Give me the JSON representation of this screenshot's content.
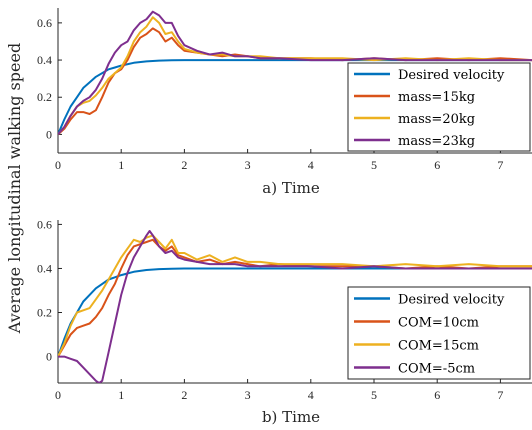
{
  "ylabel": "Average longitudinal walking speed",
  "colors": {
    "blue": "#0072BD",
    "orange": "#D95319",
    "yellow": "#EDB120",
    "purple": "#7E2F8E"
  },
  "chart_data": [
    {
      "type": "line",
      "xlabel": "a) Time",
      "xlim": [
        0,
        7.5
      ],
      "ylim": [
        -0.1,
        0.68
      ],
      "xticks": [
        0,
        1,
        2,
        3,
        4,
        5,
        6,
        7
      ],
      "yticks": [
        0,
        0.2,
        0.4,
        0.6
      ],
      "legend_position": "lower-right",
      "series": [
        {
          "name": "Desired velocity",
          "color": "#0072BD",
          "x": [
            0,
            0.1,
            0.2,
            0.3,
            0.4,
            0.5,
            0.6,
            0.7,
            0.8,
            0.9,
            1.0,
            1.2,
            1.4,
            1.6,
            1.8,
            2.0,
            2.5,
            3.0,
            4.0,
            5.0,
            6.0,
            7.0,
            7.5
          ],
          "y": [
            0,
            0.08,
            0.15,
            0.2,
            0.25,
            0.28,
            0.31,
            0.33,
            0.35,
            0.36,
            0.37,
            0.385,
            0.393,
            0.397,
            0.399,
            0.4,
            0.4,
            0.4,
            0.4,
            0.4,
            0.4,
            0.4,
            0.4
          ]
        },
        {
          "name": "mass=15kg",
          "color": "#D95319",
          "x": [
            0,
            0.1,
            0.2,
            0.3,
            0.4,
            0.5,
            0.6,
            0.7,
            0.8,
            0.9,
            1.0,
            1.1,
            1.2,
            1.3,
            1.4,
            1.5,
            1.6,
            1.7,
            1.8,
            1.9,
            2.0,
            2.2,
            2.4,
            2.6,
            2.8,
            3.0,
            3.2,
            3.5,
            4.0,
            4.5,
            5.0,
            5.5,
            6.0,
            6.5,
            7.0,
            7.5
          ],
          "y": [
            0,
            0.03,
            0.08,
            0.12,
            0.12,
            0.11,
            0.13,
            0.2,
            0.28,
            0.33,
            0.35,
            0.4,
            0.47,
            0.52,
            0.54,
            0.57,
            0.55,
            0.5,
            0.52,
            0.48,
            0.45,
            0.44,
            0.43,
            0.42,
            0.43,
            0.42,
            0.41,
            0.41,
            0.41,
            0.4,
            0.41,
            0.4,
            0.41,
            0.4,
            0.41,
            0.4
          ]
        },
        {
          "name": "mass=20kg",
          "color": "#EDB120",
          "x": [
            0,
            0.1,
            0.2,
            0.3,
            0.4,
            0.5,
            0.6,
            0.7,
            0.8,
            0.9,
            1.0,
            1.1,
            1.2,
            1.3,
            1.4,
            1.5,
            1.6,
            1.7,
            1.8,
            1.9,
            2.0,
            2.2,
            2.4,
            2.6,
            2.8,
            3.0,
            3.2,
            3.5,
            4.0,
            4.5,
            5.0,
            5.5,
            6.0,
            6.5,
            7.0,
            7.5
          ],
          "y": [
            0,
            0.04,
            0.1,
            0.15,
            0.17,
            0.18,
            0.21,
            0.25,
            0.3,
            0.33,
            0.36,
            0.42,
            0.5,
            0.55,
            0.58,
            0.63,
            0.6,
            0.54,
            0.55,
            0.5,
            0.46,
            0.44,
            0.43,
            0.43,
            0.42,
            0.42,
            0.42,
            0.41,
            0.41,
            0.41,
            0.4,
            0.41,
            0.4,
            0.41,
            0.4,
            0.4
          ]
        },
        {
          "name": "mass=23kg",
          "color": "#7E2F8E",
          "x": [
            0,
            0.1,
            0.2,
            0.3,
            0.4,
            0.5,
            0.6,
            0.7,
            0.8,
            0.9,
            1.0,
            1.1,
            1.2,
            1.3,
            1.4,
            1.5,
            1.6,
            1.7,
            1.8,
            1.9,
            2.0,
            2.2,
            2.4,
            2.6,
            2.8,
            3.0,
            3.2,
            3.5,
            4.0,
            4.5,
            5.0,
            5.5,
            6.0,
            6.5,
            7.0,
            7.5
          ],
          "y": [
            0,
            0.04,
            0.1,
            0.15,
            0.18,
            0.2,
            0.24,
            0.3,
            0.38,
            0.44,
            0.48,
            0.5,
            0.56,
            0.6,
            0.62,
            0.66,
            0.64,
            0.6,
            0.6,
            0.53,
            0.48,
            0.45,
            0.43,
            0.44,
            0.42,
            0.42,
            0.41,
            0.41,
            0.4,
            0.4,
            0.41,
            0.4,
            0.4,
            0.4,
            0.4,
            0.4
          ]
        }
      ]
    },
    {
      "type": "line",
      "xlabel": "b) Time",
      "xlim": [
        0,
        7.5
      ],
      "ylim": [
        -0.12,
        0.62
      ],
      "xticks": [
        0,
        1,
        2,
        3,
        4,
        5,
        6,
        7
      ],
      "yticks": [
        0,
        0.2,
        0.4,
        0.6
      ],
      "legend_position": "lower-right",
      "series": [
        {
          "name": "Desired velocity",
          "color": "#0072BD",
          "x": [
            0,
            0.1,
            0.2,
            0.3,
            0.4,
            0.5,
            0.6,
            0.7,
            0.8,
            0.9,
            1.0,
            1.2,
            1.4,
            1.6,
            1.8,
            2.0,
            2.5,
            3.0,
            4.0,
            5.0,
            6.0,
            7.0,
            7.5
          ],
          "y": [
            0,
            0.08,
            0.15,
            0.2,
            0.25,
            0.28,
            0.31,
            0.33,
            0.35,
            0.36,
            0.37,
            0.385,
            0.393,
            0.397,
            0.399,
            0.4,
            0.4,
            0.4,
            0.4,
            0.4,
            0.4,
            0.4,
            0.4
          ]
        },
        {
          "name": "COM=10cm",
          "color": "#D95319",
          "x": [
            0,
            0.1,
            0.2,
            0.3,
            0.4,
            0.5,
            0.6,
            0.7,
            0.8,
            0.9,
            1.0,
            1.1,
            1.2,
            1.3,
            1.4,
            1.5,
            1.6,
            1.7,
            1.8,
            1.9,
            2.0,
            2.2,
            2.4,
            2.6,
            2.8,
            3.0,
            3.2,
            3.5,
            4.0,
            4.5,
            5.0,
            5.5,
            6.0,
            6.5,
            7.0,
            7.5
          ],
          "y": [
            0,
            0.05,
            0.1,
            0.13,
            0.14,
            0.15,
            0.18,
            0.22,
            0.28,
            0.33,
            0.4,
            0.46,
            0.5,
            0.51,
            0.52,
            0.53,
            0.5,
            0.48,
            0.5,
            0.46,
            0.45,
            0.43,
            0.44,
            0.42,
            0.43,
            0.42,
            0.41,
            0.42,
            0.41,
            0.41,
            0.41,
            0.4,
            0.41,
            0.4,
            0.41,
            0.41
          ]
        },
        {
          "name": "COM=15cm",
          "color": "#EDB120",
          "x": [
            0,
            0.1,
            0.2,
            0.3,
            0.4,
            0.5,
            0.6,
            0.7,
            0.8,
            0.9,
            1.0,
            1.1,
            1.2,
            1.3,
            1.4,
            1.5,
            1.6,
            1.7,
            1.8,
            1.9,
            2.0,
            2.2,
            2.4,
            2.6,
            2.8,
            3.0,
            3.2,
            3.5,
            4.0,
            4.5,
            5.0,
            5.5,
            6.0,
            6.5,
            7.0,
            7.5
          ],
          "y": [
            0,
            0.06,
            0.14,
            0.2,
            0.21,
            0.22,
            0.26,
            0.3,
            0.35,
            0.4,
            0.45,
            0.49,
            0.53,
            0.52,
            0.54,
            0.55,
            0.52,
            0.49,
            0.53,
            0.47,
            0.47,
            0.44,
            0.46,
            0.43,
            0.45,
            0.43,
            0.43,
            0.42,
            0.42,
            0.42,
            0.41,
            0.42,
            0.41,
            0.42,
            0.41,
            0.41
          ]
        },
        {
          "name": "COM=-5cm",
          "color": "#7E2F8E",
          "x": [
            0,
            0.1,
            0.2,
            0.3,
            0.4,
            0.5,
            0.6,
            0.65,
            0.7,
            0.8,
            0.9,
            1.0,
            1.1,
            1.2,
            1.3,
            1.4,
            1.45,
            1.5,
            1.6,
            1.7,
            1.8,
            1.9,
            2.0,
            2.2,
            2.4,
            2.6,
            2.8,
            3.0,
            3.2,
            3.5,
            4.0,
            4.5,
            5.0,
            5.5,
            6.0,
            6.5,
            7.0,
            7.5
          ],
          "y": [
            0,
            0,
            -0.01,
            -0.02,
            -0.05,
            -0.08,
            -0.11,
            -0.12,
            -0.11,
            0.02,
            0.15,
            0.28,
            0.38,
            0.45,
            0.5,
            0.55,
            0.57,
            0.55,
            0.5,
            0.47,
            0.48,
            0.45,
            0.44,
            0.43,
            0.42,
            0.42,
            0.42,
            0.41,
            0.41,
            0.41,
            0.41,
            0.4,
            0.41,
            0.4,
            0.4,
            0.4,
            0.4,
            0.4
          ]
        }
      ]
    }
  ]
}
